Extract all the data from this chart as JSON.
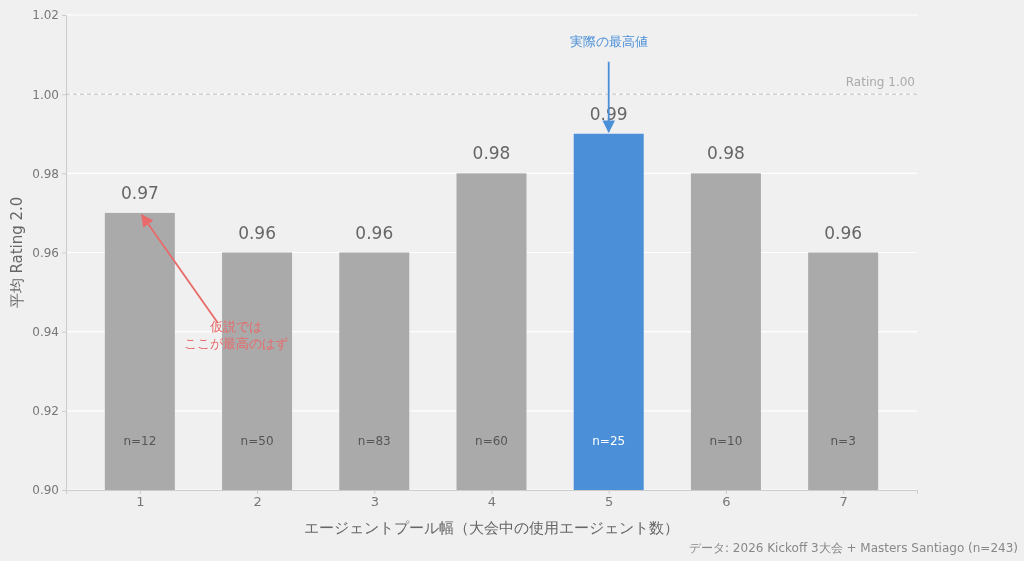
{
  "chart_data": {
    "type": "bar",
    "xlabel": "エージェントプール幅（大会中の使用エージェント数）",
    "ylabel": "平均 Rating 2.0",
    "categories": [
      "1",
      "2",
      "3",
      "4",
      "5",
      "6",
      "7"
    ],
    "values": [
      0.97,
      0.96,
      0.96,
      0.98,
      0.99,
      0.98,
      0.96
    ],
    "colors": [
      "#aaaaaa",
      "#aaaaaa",
      "#aaaaaa",
      "#aaaaaa",
      "#4a8fd8",
      "#aaaaaa",
      "#aaaaaa"
    ],
    "data_labels": true,
    "ylim": [
      0.9,
      1.02
    ],
    "yticks": [
      {
        "value": 0.9,
        "label": "0.90"
      },
      0.92,
      0.94,
      0.96,
      0.98,
      {
        "value": 1.0,
        "label": "1.00"
      },
      1.02
    ],
    "grid": "y",
    "ref_lines": [
      {
        "axis": "y",
        "value": 1.0,
        "label": "Rating 1.00",
        "color": "#bbbbbb",
        "line_style": "dashed"
      }
    ],
    "annotations": [
      {
        "text": "仮説ではここが最高のはず",
        "x": "1",
        "y": 0.97
      },
      {
        "text": "実際の最高値",
        "x": "5",
        "y": 0.99
      },
      "n=12",
      "n=50",
      "n=83",
      "n=60",
      "n=25",
      "n=10",
      "n=3",
      "データ: 2026 Kickoff 3大会 + Masters Santiago (n=243)"
    ]
  }
}
